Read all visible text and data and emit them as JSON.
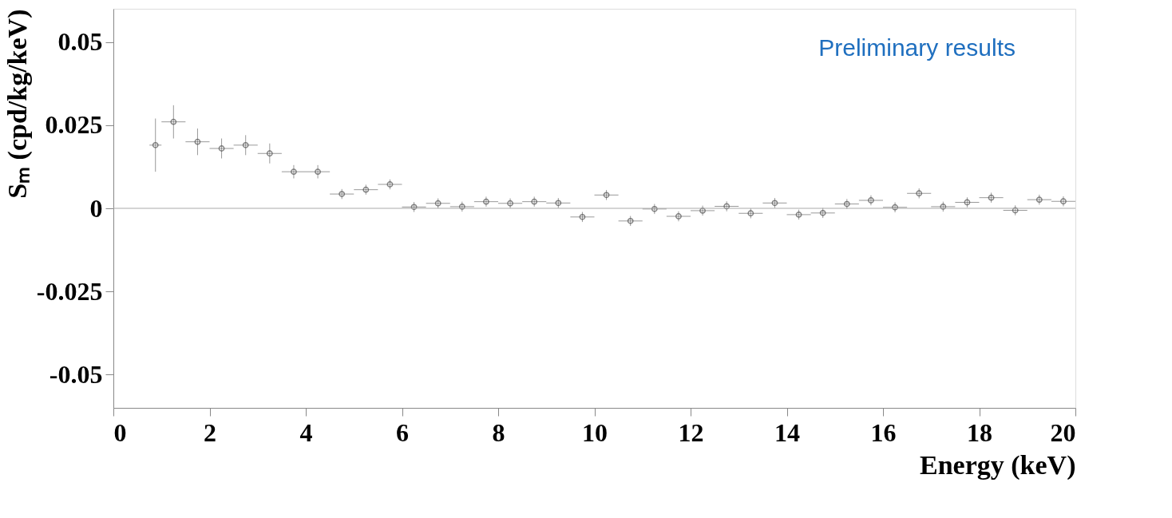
{
  "chart_data": {
    "type": "scatter",
    "xlabel": "Energy (keV)",
    "ylabel": "Sₘ (cpd/kg/keV)",
    "annotations": [
      "Preliminary results"
    ],
    "x": [
      0.875,
      1.25,
      1.75,
      2.25,
      2.75,
      3.25,
      3.75,
      4.25,
      4.75,
      5.25,
      5.75,
      6.25,
      6.75,
      7.25,
      7.75,
      8.25,
      8.75,
      9.25,
      9.75,
      10.25,
      10.75,
      11.25,
      11.75,
      12.25,
      12.75,
      13.25,
      13.75,
      14.25,
      14.75,
      15.25,
      15.75,
      16.25,
      16.75,
      17.25,
      17.75,
      18.25,
      18.75,
      19.25,
      19.75
    ],
    "series": [
      {
        "color": "#555555",
        "values": [
          0.019,
          0.026,
          0.02,
          0.018,
          0.019,
          0.0165,
          0.011,
          0.011,
          0.0043,
          0.0056,
          0.0072,
          0.0004,
          0.0015,
          0.0005,
          0.002,
          0.0015,
          0.002,
          0.0016,
          -0.0026,
          0.004,
          -0.0038,
          -0.0002,
          -0.0024,
          -0.0007,
          0.0006,
          -0.0015,
          0.0016,
          -0.0019,
          -0.0014,
          0.0013,
          0.0024,
          0.0003,
          0.0045,
          0.0005,
          0.0018,
          0.0032,
          -0.0006,
          0.0026,
          0.0021
        ],
        "errors": [
          0.008,
          0.005,
          0.004,
          0.003,
          0.003,
          0.003,
          0.002,
          0.002,
          0.0015,
          0.0015,
          0.0015,
          0.0015,
          0.0015,
          0.0015,
          0.0015,
          0.0015,
          0.0015,
          0.0015,
          0.0015,
          0.0015,
          0.0015,
          0.0015,
          0.0015,
          0.0015,
          0.0015,
          0.0015,
          0.0015,
          0.0015,
          0.0015,
          0.0015,
          0.0015,
          0.0015,
          0.0015,
          0.0015,
          0.0015,
          0.0015,
          0.0015,
          0.0015,
          0.0015
        ],
        "xerrors": [
          0.125,
          0.25,
          0.25,
          0.25,
          0.25,
          0.25,
          0.25,
          0.25,
          0.25,
          0.25,
          0.25,
          0.25,
          0.25,
          0.25,
          0.25,
          0.25,
          0.25,
          0.25,
          0.25,
          0.25,
          0.25,
          0.25,
          0.25,
          0.25,
          0.25,
          0.25,
          0.25,
          0.25,
          0.25,
          0.25,
          0.25,
          0.25,
          0.25,
          0.25,
          0.25,
          0.25,
          0.25,
          0.25,
          0.25
        ]
      }
    ],
    "marker": "circle",
    "grid": false,
    "legend": false,
    "xlim": [
      0,
      20
    ],
    "xticks": [
      0,
      2,
      4,
      6,
      8,
      10,
      12,
      14,
      16,
      18,
      20
    ],
    "ylim": [
      -0.06,
      0.06
    ],
    "yticks": [
      -0.05,
      -0.025,
      0,
      0.025,
      0.05
    ],
    "ref_lines": [
      {
        "axis": "y",
        "value": 0,
        "color": "#aaaaaa"
      }
    ]
  }
}
